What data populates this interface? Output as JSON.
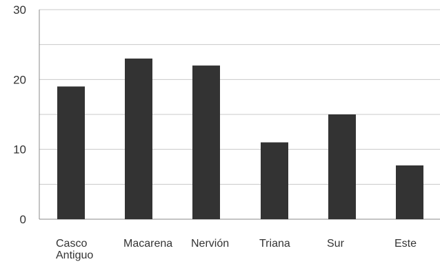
{
  "chart_data": {
    "type": "bar",
    "title": "",
    "xlabel": "",
    "ylabel": "",
    "categories": [
      [
        "Casco",
        "Antiguo"
      ],
      [
        "Macarena"
      ],
      [
        "Nervión"
      ],
      [
        "Triana"
      ],
      [
        "Sur"
      ],
      [
        "Este"
      ]
    ],
    "values": [
      19,
      23,
      22,
      11,
      15,
      7.7
    ],
    "ylim": [
      0,
      30
    ],
    "yticks": [
      0,
      10,
      20,
      30
    ],
    "grid": true,
    "minor_gridlines": [
      5,
      15,
      25
    ],
    "bar_color": "#333333"
  }
}
